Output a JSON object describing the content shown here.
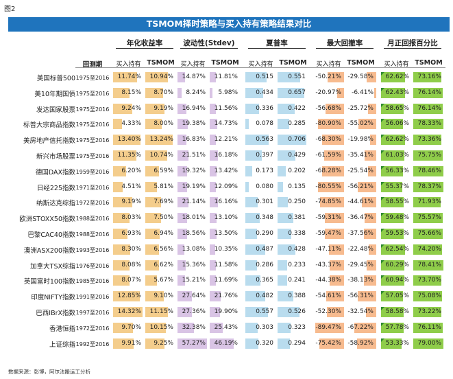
{
  "figure_label": "图2",
  "title": "TSMOM择时策略与买入持有策略结果对比",
  "footnote": "数据来源：彭博，阿尔法搬运工分析",
  "period_header": "回测期",
  "metrics": [
    {
      "name": "年化收益率",
      "sub": [
        "买入持有",
        "TSMOM"
      ]
    },
    {
      "name": "波动性(Stdev)",
      "sub": [
        "买入持有",
        "TSMOM"
      ]
    },
    {
      "name": "夏普率",
      "sub": [
        "买入持有",
        "TSMOM"
      ]
    },
    {
      "name": "最大回撤率",
      "sub": [
        "买入持有",
        "TSMOM"
      ]
    },
    {
      "name": "月正回报百分比",
      "sub": [
        "买入持有",
        "TSMOM"
      ]
    }
  ],
  "colors": {
    "title_bg": "#1f74bd",
    "return": "#f4cd8c",
    "volatility": "#d9c4e5",
    "sharpe": "#b9dcee",
    "drawdown": "#f7bb8f",
    "positive_month": "#8fcd4a"
  },
  "chart_data": {
    "type": "table",
    "title": "TSMOM择时策略与买入持有策略结果对比",
    "rows": [
      {
        "name": "美国标普500",
        "period": "1975至2016",
        "values": [
          "11.74%",
          "10.94%",
          "14.87%",
          "11.81%",
          "0.515",
          "0.551",
          "-50.21%",
          "-29.58%",
          "62.62%",
          "73.16%"
        ]
      },
      {
        "name": "美10年期国债",
        "period": "1975至2016",
        "values": [
          "8.15%",
          "8.70%",
          "8.24%",
          "5.98%",
          "0.434",
          "0.657",
          "-20.97%",
          "-6.41%",
          "62.43%",
          "76.14%"
        ]
      },
      {
        "name": "发达国家股票",
        "period": "1975至2016",
        "values": [
          "9.24%",
          "9.19%",
          "16.94%",
          "11.56%",
          "0.336",
          "0.422",
          "-56.68%",
          "-25.72%",
          "58.65%",
          "76.14%"
        ]
      },
      {
        "name": "标普大宗商品指数",
        "period": "1975至2016",
        "values": [
          "4.33%",
          "8.00%",
          "19.38%",
          "14.73%",
          "0.078",
          "0.285",
          "-80.90%",
          "-55.02%",
          "56.06%",
          "78.33%"
        ]
      },
      {
        "name": "美房地产信托指数",
        "period": "1975至2016",
        "values": [
          "13.40%",
          "13.24%",
          "16.83%",
          "12.21%",
          "0.563",
          "0.706",
          "-68.30%",
          "-19.98%",
          "62.62%",
          "73.36%"
        ]
      },
      {
        "name": "新兴市场股票",
        "period": "1975至2016",
        "values": [
          "11.35%",
          "10.74%",
          "21.51%",
          "16.18%",
          "0.397",
          "0.429",
          "-61.59%",
          "-35.41%",
          "61.03%",
          "75.75%"
        ]
      },
      {
        "name": "德国DAX指数",
        "period": "1959至2016",
        "values": [
          "6.20%",
          "6.59%",
          "19.32%",
          "13.42%",
          "0.173",
          "0.202",
          "-68.28%",
          "-25.54%",
          "56.33%",
          "78.46%"
        ]
      },
      {
        "name": "日经225指数",
        "period": "1971至2016",
        "values": [
          "4.51%",
          "5.81%",
          "19.19%",
          "12.09%",
          "0.080",
          "0.135",
          "-80.55%",
          "-56.21%",
          "55.37%",
          "78.37%"
        ]
      },
      {
        "name": "纳斯达克综指",
        "period": "1972至2016",
        "values": [
          "9.19%",
          "7.69%",
          "21.14%",
          "16.16%",
          "0.301",
          "0.250",
          "-74.85%",
          "-44.61%",
          "58.55%",
          "71.93%"
        ]
      },
      {
        "name": "欧洲STOXX50指数",
        "period": "1988至2016",
        "values": [
          "8.03%",
          "7.50%",
          "18.01%",
          "13.10%",
          "0.348",
          "0.381",
          "-59.31%",
          "-36.47%",
          "59.48%",
          "75.57%"
        ]
      },
      {
        "name": "巴黎CAC40指数",
        "period": "1988至2016",
        "values": [
          "6.93%",
          "6.94%",
          "18.56%",
          "13.50%",
          "0.290",
          "0.338",
          "-59.47%",
          "-37.56%",
          "59.53%",
          "75.66%"
        ]
      },
      {
        "name": "澳洲ASX200指数",
        "period": "1993至2016",
        "values": [
          "8.30%",
          "6.56%",
          "13.08%",
          "10.35%",
          "0.487",
          "0.428",
          "-47.11%",
          "-22.48%",
          "62.54%",
          "74.20%"
        ]
      },
      {
        "name": "加拿大TSX综指",
        "period": "1976至2016",
        "values": [
          "8.08%",
          "6.62%",
          "15.36%",
          "11.58%",
          "0.286",
          "0.233",
          "-43.37%",
          "-29.45%",
          "60.29%",
          "78.41%"
        ]
      },
      {
        "name": "英国富时100指数",
        "period": "1985至2016",
        "values": [
          "8.07%",
          "5.67%",
          "15.21%",
          "11.69%",
          "0.365",
          "0.241",
          "-44.38%",
          "-38.13%",
          "60.94%",
          "73.70%"
        ]
      },
      {
        "name": "印度NIFTY指数",
        "period": "1991至2016",
        "values": [
          "12.85%",
          "9.10%",
          "27.64%",
          "21.76%",
          "0.482",
          "0.388",
          "-54.61%",
          "-56.31%",
          "57.05%",
          "75.08%"
        ]
      },
      {
        "name": "巴西IBrX指数",
        "period": "1997至2016",
        "values": [
          "14.32%",
          "11.15%",
          "27.36%",
          "19.90%",
          "0.557",
          "0.526",
          "-52.30%",
          "-32.54%",
          "58.58%",
          "73.22%"
        ]
      },
      {
        "name": "香港恒指",
        "period": "1972至2016",
        "values": [
          "9.70%",
          "10.15%",
          "32.38%",
          "25.43%",
          "0.303",
          "0.323",
          "-89.47%",
          "-67.22%",
          "57.78%",
          "76.11%"
        ]
      },
      {
        "name": "上证综指",
        "period": "1992至2016",
        "values": [
          "9.91%",
          "9.25%",
          "57.27%",
          "46.19%",
          "0.320",
          "0.294",
          "-75.42%",
          "-58.92%",
          "53.33%",
          "79.00%"
        ]
      }
    ]
  }
}
